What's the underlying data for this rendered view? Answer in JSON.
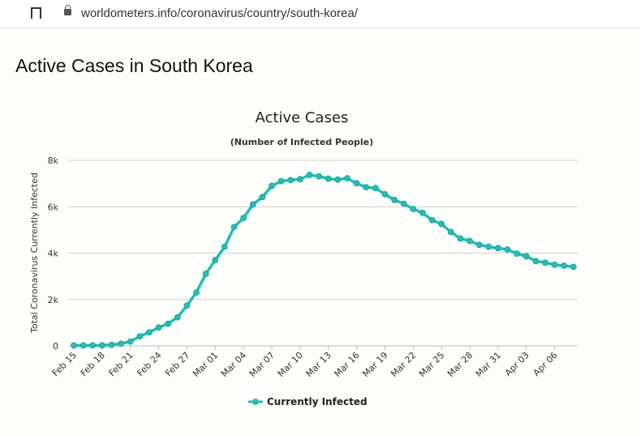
{
  "browser": {
    "url": "worldometers.info/coronavirus/country/south-korea/",
    "icons": [
      "bookmark-icon",
      "lock-icon"
    ]
  },
  "page": {
    "heading": "Active Cases in South Korea"
  },
  "chart_data": {
    "type": "line",
    "title": "Active Cases",
    "subtitle": "(Number of Infected People)",
    "ylabel": "Total Coronavirus Currently Infected",
    "xlabel": "",
    "ylim": [
      0,
      8000
    ],
    "yticks": [
      "0",
      "2k",
      "4k",
      "6k",
      "8k"
    ],
    "grid": true,
    "legend": "bottom",
    "color": "#1fbfb8",
    "xticks": [
      "Feb 15",
      "Feb 18",
      "Feb 21",
      "Feb 24",
      "Feb 27",
      "Mar 01",
      "Mar 04",
      "Mar 07",
      "Mar 10",
      "Mar 13",
      "Mar 16",
      "Mar 19",
      "Mar 22",
      "Mar 25",
      "Mar 28",
      "Mar 31",
      "Apr 03",
      "Apr 06"
    ],
    "x": [
      "Feb 15",
      "Feb 16",
      "Feb 17",
      "Feb 18",
      "Feb 19",
      "Feb 20",
      "Feb 21",
      "Feb 22",
      "Feb 23",
      "Feb 24",
      "Feb 25",
      "Feb 26",
      "Feb 27",
      "Feb 28",
      "Feb 29",
      "Mar 01",
      "Mar 02",
      "Mar 03",
      "Mar 04",
      "Mar 05",
      "Mar 06",
      "Mar 07",
      "Mar 08",
      "Mar 09",
      "Mar 10",
      "Mar 11",
      "Mar 12",
      "Mar 13",
      "Mar 14",
      "Mar 15",
      "Mar 16",
      "Mar 17",
      "Mar 18",
      "Mar 19",
      "Mar 20",
      "Mar 21",
      "Mar 22",
      "Mar 23",
      "Mar 24",
      "Mar 25",
      "Mar 26",
      "Mar 27",
      "Mar 28",
      "Mar 29",
      "Mar 30",
      "Mar 31",
      "Apr 01",
      "Apr 02",
      "Apr 03",
      "Apr 04",
      "Apr 05",
      "Apr 06",
      "Apr 07",
      "Apr 08"
    ],
    "series": [
      {
        "name": "Currently Infected",
        "values": [
          20,
          22,
          23,
          24,
          43,
          96,
          187,
          410,
          586,
          795,
          955,
          1232,
          1738,
          2306,
          3108,
          3699,
          4275,
          5125,
          5517,
          6099,
          6415,
          6902,
          7103,
          7152,
          7185,
          7374,
          7313,
          7212,
          7172,
          7231,
          7012,
          6844,
          6805,
          6543,
          6295,
          6130,
          5905,
          5738,
          5423,
          5259,
          4912,
          4631,
          4523,
          4360,
          4275,
          4216,
          4155,
          3979,
          3867,
          3654,
          3591,
          3500,
          3458,
          3408
        ]
      }
    ]
  }
}
